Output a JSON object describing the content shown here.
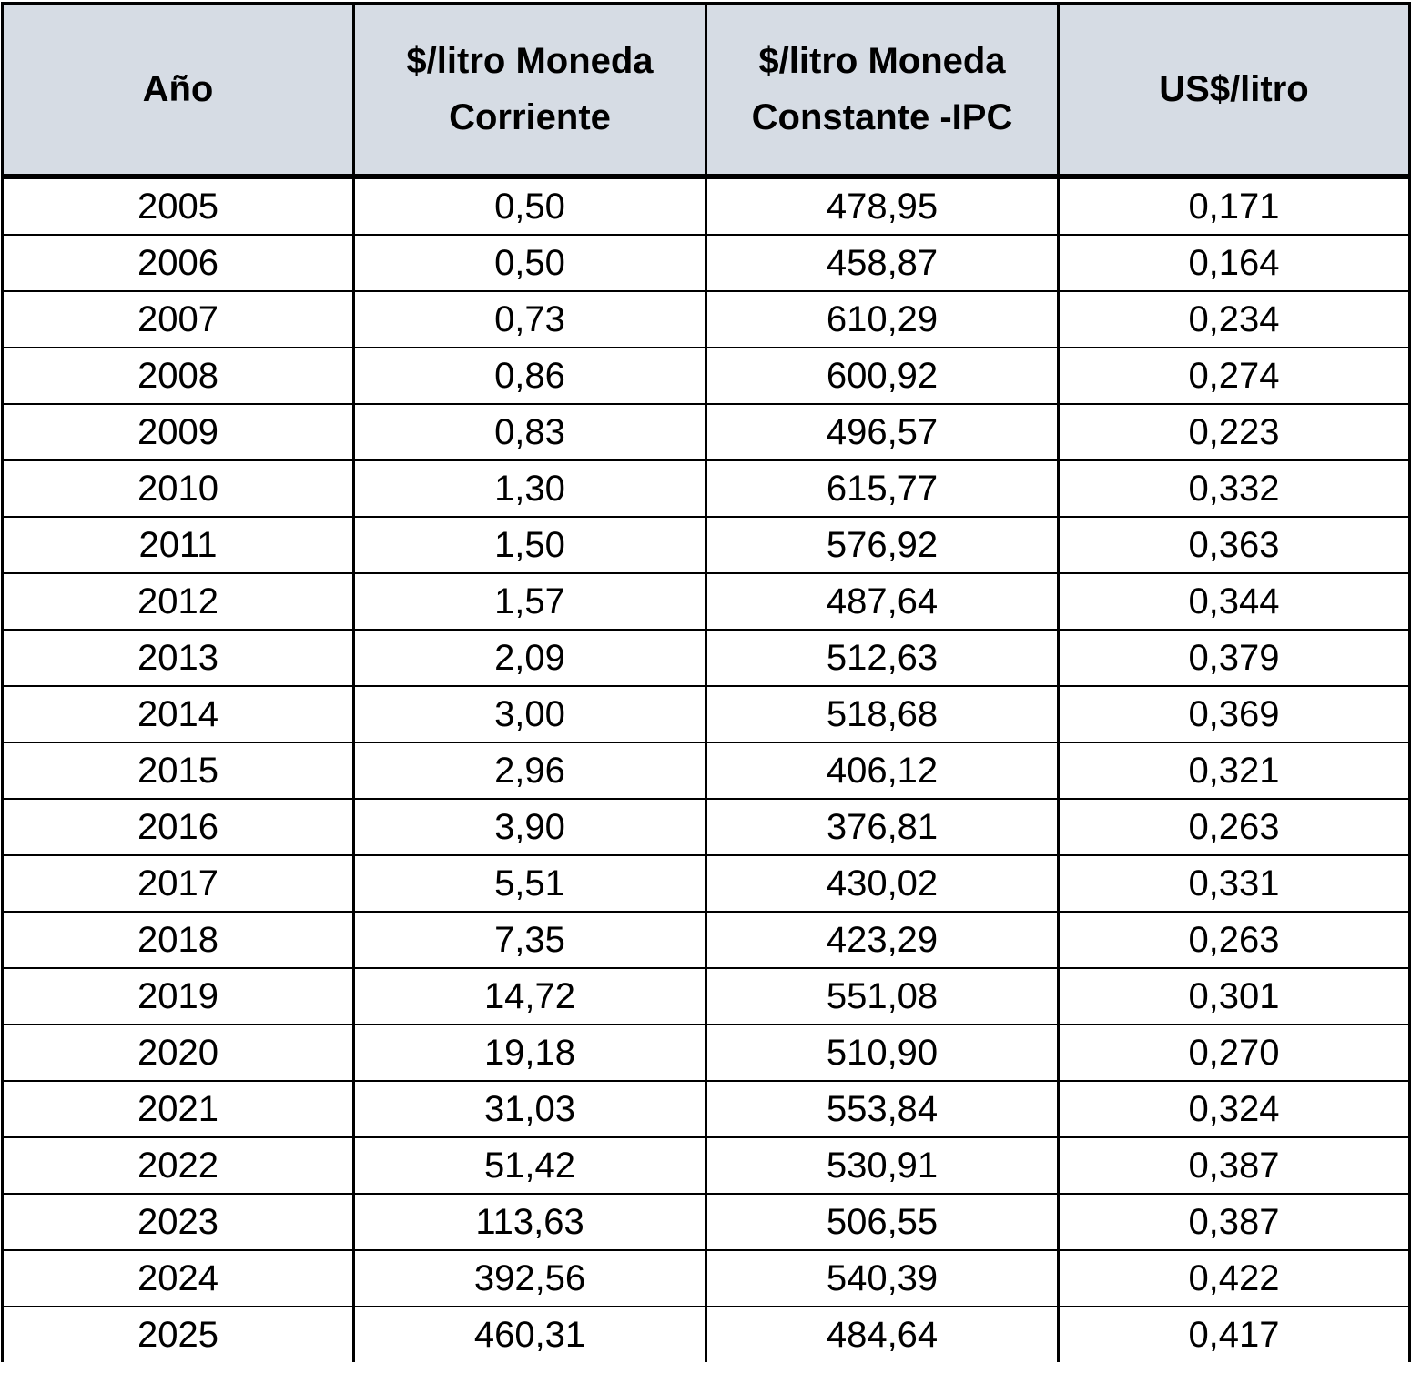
{
  "table": {
    "headers": [
      [
        "Año"
      ],
      [
        "$/litro Moneda",
        "Corriente"
      ],
      [
        "$/litro Moneda",
        "Constante -IPC"
      ],
      [
        "US$/litro"
      ]
    ],
    "rows": [
      [
        "2005",
        "0,50",
        "478,95",
        "0,171"
      ],
      [
        "2006",
        "0,50",
        "458,87",
        "0,164"
      ],
      [
        "2007",
        "0,73",
        "610,29",
        "0,234"
      ],
      [
        "2008",
        "0,86",
        "600,92",
        "0,274"
      ],
      [
        "2009",
        "0,83",
        "496,57",
        "0,223"
      ],
      [
        "2010",
        "1,30",
        "615,77",
        "0,332"
      ],
      [
        "2011",
        "1,50",
        "576,92",
        "0,363"
      ],
      [
        "2012",
        "1,57",
        "487,64",
        "0,344"
      ],
      [
        "2013",
        "2,09",
        "512,63",
        "0,379"
      ],
      [
        "2014",
        "3,00",
        "518,68",
        "0,369"
      ],
      [
        "2015",
        "2,96",
        "406,12",
        "0,321"
      ],
      [
        "2016",
        "3,90",
        "376,81",
        "0,263"
      ],
      [
        "2017",
        "5,51",
        "430,02",
        "0,331"
      ],
      [
        "2018",
        "7,35",
        "423,29",
        "0,263"
      ],
      [
        "2019",
        "14,72",
        "551,08",
        "0,301"
      ],
      [
        "2020",
        "19,18",
        "510,90",
        "0,270"
      ],
      [
        "2021",
        "31,03",
        "553,84",
        "0,324"
      ],
      [
        "2022",
        "51,42",
        "530,91",
        "0,387"
      ],
      [
        "2023",
        "113,63",
        "506,55",
        "0,387"
      ],
      [
        "2024",
        "392,56",
        "540,39",
        "0,422"
      ],
      [
        "2025",
        "460,31",
        "484,64",
        "0,417"
      ]
    ]
  },
  "colors": {
    "header_bg": "#d6dce4",
    "border": "#000000",
    "text": "#000000"
  }
}
